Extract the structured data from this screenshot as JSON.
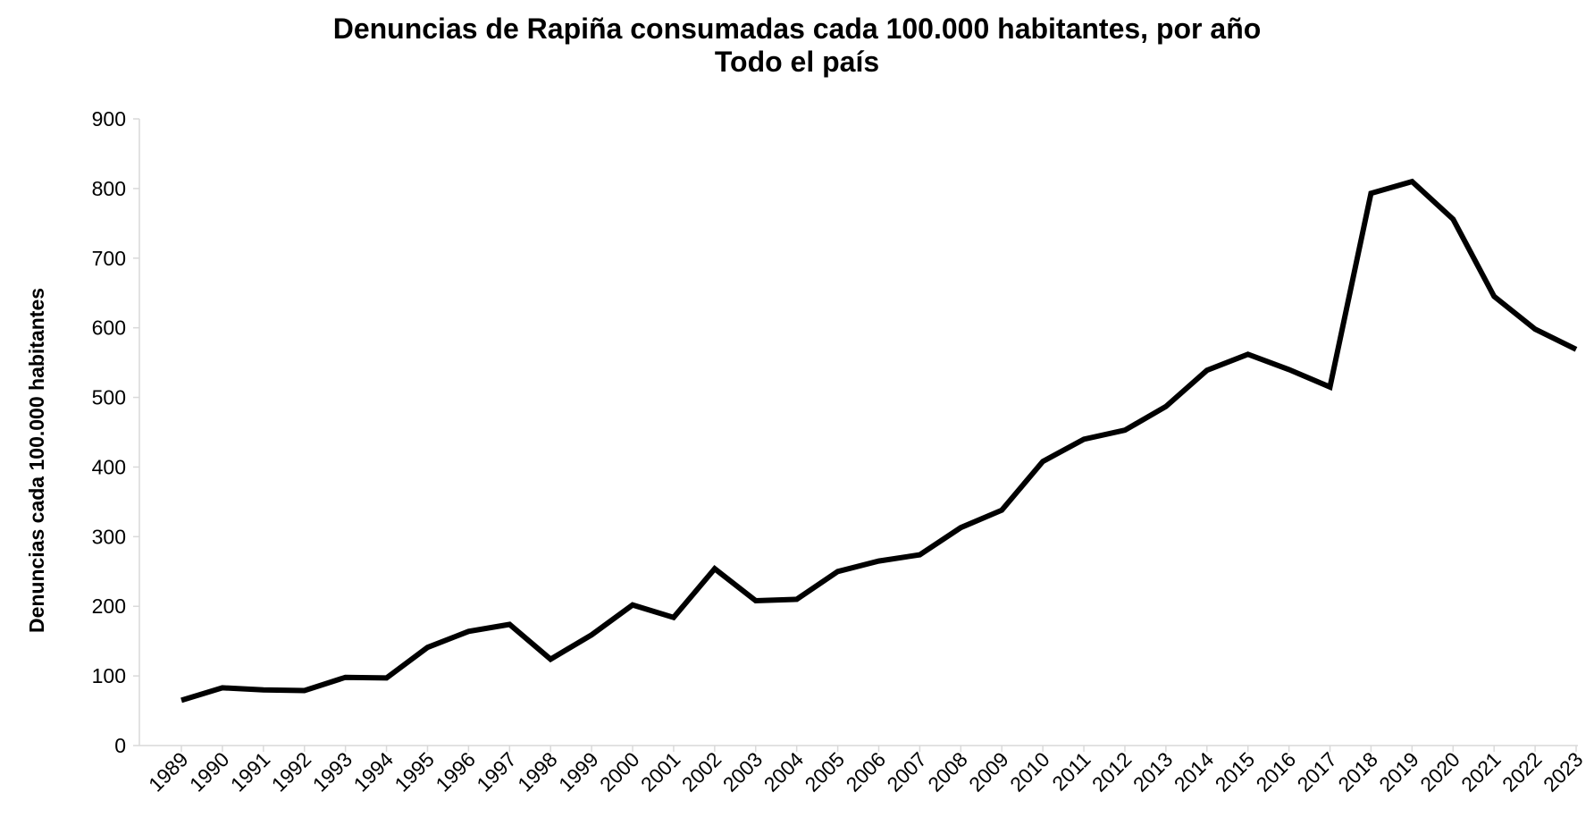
{
  "chart_data": {
    "type": "line",
    "title": "Denuncias de Rapiña consumadas cada 100.000 habitantes, por año",
    "subtitle": "Todo el país",
    "xlabel": "",
    "ylabel": "Denuncias cada 100.000 habitantes",
    "ylim": [
      0,
      900
    ],
    "yticks": [
      0,
      100,
      200,
      300,
      400,
      500,
      600,
      700,
      800,
      900
    ],
    "grid": false,
    "legend": "none",
    "line_color": "#000000",
    "categories": [
      "1989",
      "1990",
      "1991",
      "1992",
      "1993",
      "1994",
      "1995",
      "1996",
      "1997",
      "1998",
      "1999",
      "2000",
      "2001",
      "2002",
      "2003",
      "2004",
      "2005",
      "2006",
      "2007",
      "2008",
      "2009",
      "2010",
      "2011",
      "2012",
      "2013",
      "2014",
      "2015",
      "2016",
      "2017",
      "2018",
      "2019",
      "2020",
      "2021",
      "2022",
      "2023"
    ],
    "series": [
      {
        "values": [
          65,
          83,
          80,
          79,
          98,
          97,
          141,
          164,
          174,
          124,
          159,
          202,
          184,
          254,
          208,
          210,
          250,
          265,
          274,
          313,
          338,
          408,
          440,
          453,
          487,
          539,
          562,
          540,
          515,
          793,
          810,
          756,
          645,
          598,
          569
        ]
      }
    ]
  }
}
